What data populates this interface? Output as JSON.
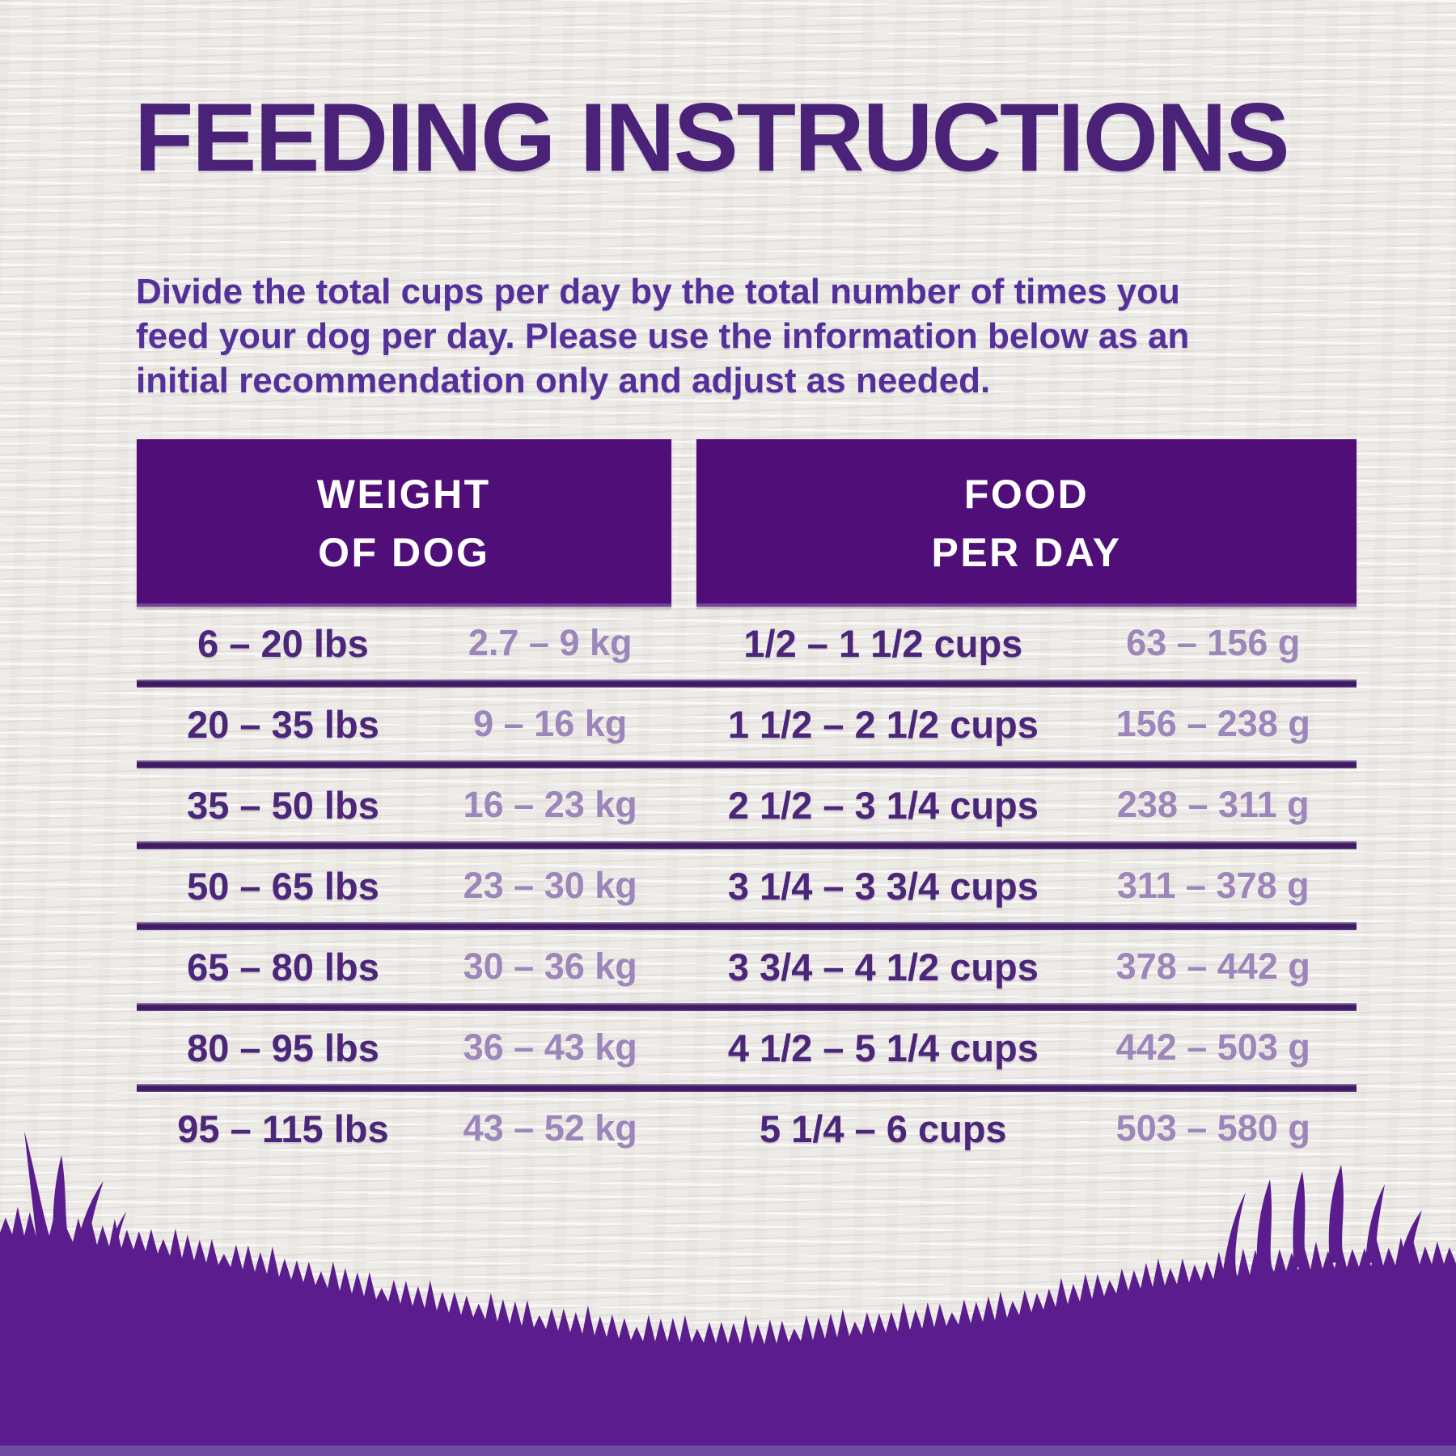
{
  "page": {
    "title": "FEEDING INSTRUCTIONS",
    "intro_lines": [
      "Divide the total cups per day by the total number of times you",
      "feed your dog per day. Please use the information below as an",
      "initial recommendation only and adjust as needed."
    ]
  },
  "table": {
    "headers": [
      {
        "line1": "WEIGHT",
        "line2": "OF DOG"
      },
      {
        "line1": "FOOD",
        "line2": "PER DAY"
      }
    ],
    "rows": [
      {
        "lbs": "6 – 20 lbs",
        "kg": "2.7 – 9 kg",
        "cups": "1/2 – 1 1/2 cups",
        "grams": "63 – 156 g"
      },
      {
        "lbs": "20 – 35 lbs",
        "kg": "9 – 16 kg",
        "cups": "1 1/2 – 2 1/2 cups",
        "grams": "156 – 238 g"
      },
      {
        "lbs": "35 – 50 lbs",
        "kg": "16 – 23 kg",
        "cups": "2 1/2 – 3 1/4 cups",
        "grams": "238 – 311 g"
      },
      {
        "lbs": "50 – 65 lbs",
        "kg": "23 – 30 kg",
        "cups": "3 1/4 – 3 3/4 cups",
        "grams": "311 – 378 g"
      },
      {
        "lbs": "65 – 80 lbs",
        "kg": "30 – 36 kg",
        "cups": "3 3/4 – 4 1/2 cups",
        "grams": "378 – 442 g"
      },
      {
        "lbs": "80 – 95 lbs",
        "kg": "36 – 43 kg",
        "cups": "4 1/2 – 5 1/4 cups",
        "grams": "442 – 503 g"
      },
      {
        "lbs": "95 – 115 lbs",
        "kg": "43 – 52 kg",
        "cups": "5 1/4 – 6 cups",
        "grams": "503 – 580 g"
      }
    ]
  },
  "colors": {
    "title_purple": "#4a2277",
    "body_text_purple": "#54309a",
    "header_bg_purple": "#500f78",
    "header_text": "#ffffff",
    "row_dark_purple": "#4b2679",
    "row_light_purple": "#9c86ba",
    "divider_purple": "#3f1c62",
    "grass_purple": "#5b1c8e",
    "background": "#efedea"
  }
}
